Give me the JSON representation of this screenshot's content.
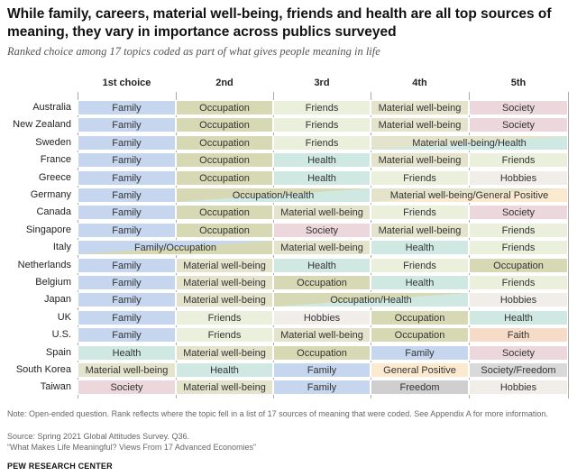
{
  "title": "While family, careers, material well-being, friends and health are all top sources of meaning, they vary in importance across publics surveyed",
  "subtitle": "Ranked choice among 17 topics coded as part of what gives people meaning in life",
  "note": "Note: Open-ended question. Rank reflects where the topic fell in a list of 17 sources of meaning that were coded. See Appendix A for more information.",
  "source": "Source: Spring 2021 Global Attitudes Survey. Q36.",
  "report": "“What Makes Life Meaningful? Views From 17 Advanced Economies”",
  "organization": "PEW RESEARCH CENTER",
  "colors": {
    "Family": "#c6d6ee",
    "Occupation": "#d7d9b5",
    "Friends": "#ebf0dd",
    "Material well-being": "#e4e3cc",
    "Society": "#ecd8dc",
    "Health": "#cfe8e2",
    "Hobbies": "#f1eeea",
    "Faith": "#f6dcc8",
    "General Positive": "#fbead0",
    "Freedom": "#cfcfcf",
    "Society/Freedom": "#d9d9d9"
  },
  "chart_data": {
    "type": "table",
    "columns": [
      "1st choice",
      "2nd",
      "3rd",
      "4th",
      "5th"
    ],
    "rows": [
      {
        "country": "Australia",
        "cells": [
          {
            "label": "Family",
            "span": 1,
            "topics": [
              "Family"
            ]
          },
          {
            "label": "Occupation",
            "span": 1,
            "topics": [
              "Occupation"
            ]
          },
          {
            "label": "Friends",
            "span": 1,
            "topics": [
              "Friends"
            ]
          },
          {
            "label": "Material well-being",
            "span": 1,
            "topics": [
              "Material well-being"
            ]
          },
          {
            "label": "Society",
            "span": 1,
            "topics": [
              "Society"
            ]
          }
        ]
      },
      {
        "country": "New Zealand",
        "cells": [
          {
            "label": "Family",
            "span": 1,
            "topics": [
              "Family"
            ]
          },
          {
            "label": "Occupation",
            "span": 1,
            "topics": [
              "Occupation"
            ]
          },
          {
            "label": "Friends",
            "span": 1,
            "topics": [
              "Friends"
            ]
          },
          {
            "label": "Material well-being",
            "span": 1,
            "topics": [
              "Material well-being"
            ]
          },
          {
            "label": "Society",
            "span": 1,
            "topics": [
              "Society"
            ]
          }
        ]
      },
      {
        "country": "Sweden",
        "cells": [
          {
            "label": "Family",
            "span": 1,
            "topics": [
              "Family"
            ]
          },
          {
            "label": "Occupation",
            "span": 1,
            "topics": [
              "Occupation"
            ]
          },
          {
            "label": "Friends",
            "span": 1,
            "topics": [
              "Friends"
            ]
          },
          {
            "label": "Material well-being/Health",
            "span": 2,
            "topics": [
              "Material well-being",
              "Health"
            ]
          }
        ]
      },
      {
        "country": "France",
        "cells": [
          {
            "label": "Family",
            "span": 1,
            "topics": [
              "Family"
            ]
          },
          {
            "label": "Occupation",
            "span": 1,
            "topics": [
              "Occupation"
            ]
          },
          {
            "label": "Health",
            "span": 1,
            "topics": [
              "Health"
            ]
          },
          {
            "label": "Material well-being",
            "span": 1,
            "topics": [
              "Material well-being"
            ]
          },
          {
            "label": "Friends",
            "span": 1,
            "topics": [
              "Friends"
            ]
          }
        ]
      },
      {
        "country": "Greece",
        "cells": [
          {
            "label": "Family",
            "span": 1,
            "topics": [
              "Family"
            ]
          },
          {
            "label": "Occupation",
            "span": 1,
            "topics": [
              "Occupation"
            ]
          },
          {
            "label": "Health",
            "span": 1,
            "topics": [
              "Health"
            ]
          },
          {
            "label": "Friends",
            "span": 1,
            "topics": [
              "Friends"
            ]
          },
          {
            "label": "Hobbies",
            "span": 1,
            "topics": [
              "Hobbies"
            ]
          }
        ]
      },
      {
        "country": "Germany",
        "cells": [
          {
            "label": "Family",
            "span": 1,
            "topics": [
              "Family"
            ]
          },
          {
            "label": "Occupation/Health",
            "span": 2,
            "topics": [
              "Occupation",
              "Health"
            ]
          },
          {
            "label": "Material well-being/General Positive",
            "span": 2,
            "topics": [
              "Material well-being",
              "General Positive"
            ]
          }
        ]
      },
      {
        "country": "Canada",
        "cells": [
          {
            "label": "Family",
            "span": 1,
            "topics": [
              "Family"
            ]
          },
          {
            "label": "Occupation",
            "span": 1,
            "topics": [
              "Occupation"
            ]
          },
          {
            "label": "Material well-being",
            "span": 1,
            "topics": [
              "Material well-being"
            ]
          },
          {
            "label": "Friends",
            "span": 1,
            "topics": [
              "Friends"
            ]
          },
          {
            "label": "Society",
            "span": 1,
            "topics": [
              "Society"
            ]
          }
        ]
      },
      {
        "country": "Singapore",
        "cells": [
          {
            "label": "Family",
            "span": 1,
            "topics": [
              "Family"
            ]
          },
          {
            "label": "Occupation",
            "span": 1,
            "topics": [
              "Occupation"
            ]
          },
          {
            "label": "Society",
            "span": 1,
            "topics": [
              "Society"
            ]
          },
          {
            "label": "Material well-being",
            "span": 1,
            "topics": [
              "Material well-being"
            ]
          },
          {
            "label": "Friends",
            "span": 1,
            "topics": [
              "Friends"
            ]
          }
        ]
      },
      {
        "country": "Italy",
        "cells": [
          {
            "label": "Family/Occupation",
            "span": 2,
            "topics": [
              "Family",
              "Occupation"
            ]
          },
          {
            "label": "Material well-being",
            "span": 1,
            "topics": [
              "Material well-being"
            ]
          },
          {
            "label": "Health",
            "span": 1,
            "topics": [
              "Health"
            ]
          },
          {
            "label": "Friends",
            "span": 1,
            "topics": [
              "Friends"
            ]
          }
        ]
      },
      {
        "country": "Netherlands",
        "cells": [
          {
            "label": "Family",
            "span": 1,
            "topics": [
              "Family"
            ]
          },
          {
            "label": "Material well-being",
            "span": 1,
            "topics": [
              "Material well-being"
            ]
          },
          {
            "label": "Health",
            "span": 1,
            "topics": [
              "Health"
            ]
          },
          {
            "label": "Friends",
            "span": 1,
            "topics": [
              "Friends"
            ]
          },
          {
            "label": "Occupation",
            "span": 1,
            "topics": [
              "Occupation"
            ]
          }
        ]
      },
      {
        "country": "Belgium",
        "cells": [
          {
            "label": "Family",
            "span": 1,
            "topics": [
              "Family"
            ]
          },
          {
            "label": "Material well-being",
            "span": 1,
            "topics": [
              "Material well-being"
            ]
          },
          {
            "label": "Occupation",
            "span": 1,
            "topics": [
              "Occupation"
            ]
          },
          {
            "label": "Health",
            "span": 1,
            "topics": [
              "Health"
            ]
          },
          {
            "label": "Friends",
            "span": 1,
            "topics": [
              "Friends"
            ]
          }
        ]
      },
      {
        "country": "Japan",
        "cells": [
          {
            "label": "Family",
            "span": 1,
            "topics": [
              "Family"
            ]
          },
          {
            "label": "Material well-being",
            "span": 1,
            "topics": [
              "Material well-being"
            ]
          },
          {
            "label": "Occupation/Health",
            "span": 2,
            "topics": [
              "Occupation",
              "Health"
            ]
          },
          {
            "label": "Hobbies",
            "span": 1,
            "topics": [
              "Hobbies"
            ]
          }
        ]
      },
      {
        "country": "UK",
        "cells": [
          {
            "label": "Family",
            "span": 1,
            "topics": [
              "Family"
            ]
          },
          {
            "label": "Friends",
            "span": 1,
            "topics": [
              "Friends"
            ]
          },
          {
            "label": "Hobbies",
            "span": 1,
            "topics": [
              "Hobbies"
            ]
          },
          {
            "label": "Occupation",
            "span": 1,
            "topics": [
              "Occupation"
            ]
          },
          {
            "label": "Health",
            "span": 1,
            "topics": [
              "Health"
            ]
          }
        ]
      },
      {
        "country": "U.S.",
        "cells": [
          {
            "label": "Family",
            "span": 1,
            "topics": [
              "Family"
            ]
          },
          {
            "label": "Friends",
            "span": 1,
            "topics": [
              "Friends"
            ]
          },
          {
            "label": "Material well-being",
            "span": 1,
            "topics": [
              "Material well-being"
            ]
          },
          {
            "label": "Occupation",
            "span": 1,
            "topics": [
              "Occupation"
            ]
          },
          {
            "label": "Faith",
            "span": 1,
            "topics": [
              "Faith"
            ]
          }
        ]
      },
      {
        "country": "Spain",
        "cells": [
          {
            "label": "Health",
            "span": 1,
            "topics": [
              "Health"
            ]
          },
          {
            "label": "Material well-being",
            "span": 1,
            "topics": [
              "Material well-being"
            ]
          },
          {
            "label": "Occupation",
            "span": 1,
            "topics": [
              "Occupation"
            ]
          },
          {
            "label": "Family",
            "span": 1,
            "topics": [
              "Family"
            ]
          },
          {
            "label": "Society",
            "span": 1,
            "topics": [
              "Society"
            ]
          }
        ]
      },
      {
        "country": "South Korea",
        "cells": [
          {
            "label": "Material well-being",
            "span": 1,
            "topics": [
              "Material well-being"
            ]
          },
          {
            "label": "Health",
            "span": 1,
            "topics": [
              "Health"
            ]
          },
          {
            "label": "Family",
            "span": 1,
            "topics": [
              "Family"
            ]
          },
          {
            "label": "General Positive",
            "span": 1,
            "topics": [
              "General Positive"
            ]
          },
          {
            "label": "Society/Freedom",
            "span": 1,
            "topics": [
              "Society/Freedom"
            ]
          }
        ]
      },
      {
        "country": "Taiwan",
        "cells": [
          {
            "label": "Society",
            "span": 1,
            "topics": [
              "Society"
            ]
          },
          {
            "label": "Material well-being",
            "span": 1,
            "topics": [
              "Material well-being"
            ]
          },
          {
            "label": "Family",
            "span": 1,
            "topics": [
              "Family"
            ]
          },
          {
            "label": "Freedom",
            "span": 1,
            "topics": [
              "Freedom"
            ]
          },
          {
            "label": "Hobbies",
            "span": 1,
            "topics": [
              "Hobbies"
            ]
          }
        ]
      }
    ]
  }
}
